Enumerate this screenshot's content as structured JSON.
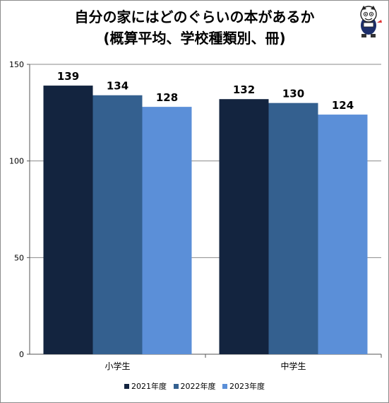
{
  "title_line1": "自分の家にはどのぐらいの本があるか",
  "title_line2": "(概算平均、学校種類別、冊)",
  "icons": {
    "mascot": "cartoon-mascot-icon"
  },
  "colors": {
    "s2021": "#13243f",
    "s2022": "#34608f",
    "s2023": "#5b8fd8",
    "grid": "#8a8a8a"
  },
  "chart_data": {
    "type": "bar",
    "title": "自分の家にはどのぐらいの本があるか",
    "subtitle": "(概算平均、学校種類別、冊)",
    "categories": [
      "小学生",
      "中学生"
    ],
    "series": [
      {
        "name": "2021年度",
        "values": [
          139,
          132
        ]
      },
      {
        "name": "2022年度",
        "values": [
          134,
          130
        ]
      },
      {
        "name": "2023年度",
        "values": [
          128,
          124
        ]
      }
    ],
    "ylim": [
      0,
      150
    ],
    "yticks": [
      "0",
      "50",
      "100",
      "150"
    ],
    "grid": true,
    "legend_position": "bottom"
  }
}
